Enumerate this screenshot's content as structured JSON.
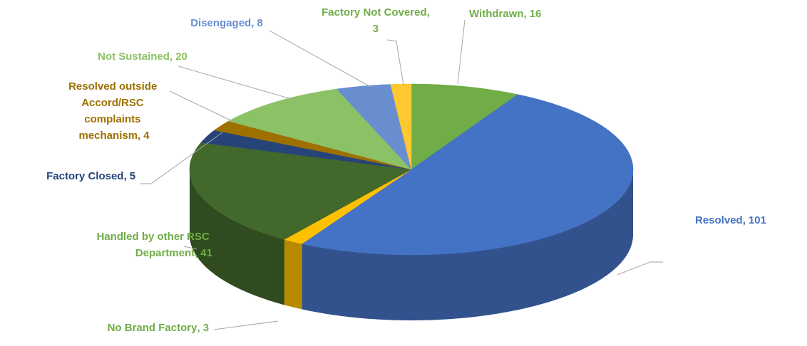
{
  "chart_data": {
    "type": "pie3d",
    "categories": [
      "Withdrawn",
      "Resolved",
      "No Brand Factory",
      "Handled by other RSC Department",
      "Factory Closed",
      "Resolved outside Accord/RSC complaints mechanism",
      "Not Sustained",
      "Disengaged",
      "Factory Not Covered"
    ],
    "values": [
      16,
      101,
      3,
      41,
      5,
      4,
      20,
      8,
      3
    ],
    "colors": [
      "#70ad47",
      "#4472c4",
      "#ffc000",
      "#43682b",
      "#264478",
      "#9e7000",
      "#8cc266",
      "#698ed0",
      "#ffc830"
    ],
    "label_colors": [
      "#70ad47",
      "#4472c4",
      "#70ad47",
      "#70ad47",
      "#264478",
      "#9e7000",
      "#8cc266",
      "#698ed0",
      "#70ad47"
    ]
  }
}
